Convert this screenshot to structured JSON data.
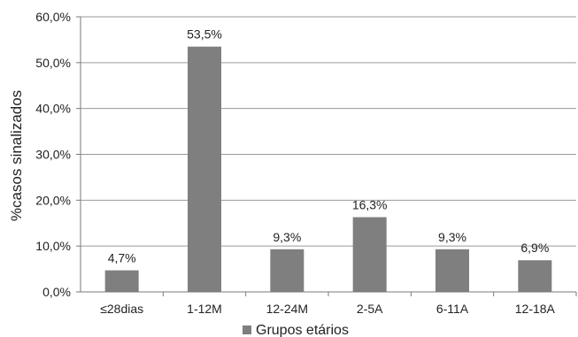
{
  "chart_data": {
    "type": "bar",
    "categories": [
      "≤28dias",
      "1-12M",
      "12-24M",
      "2-5A",
      "6-11A",
      "12-18A"
    ],
    "series": [
      {
        "name": "Grupos etários",
        "values": [
          4.7,
          53.5,
          9.3,
          16.3,
          9.3,
          6.9
        ],
        "data_labels": [
          "4,7%",
          "53,5%",
          "9,3%",
          "16,3%",
          "9,3%",
          "6,9%"
        ]
      }
    ],
    "ylabel": "%casos sinalizados",
    "xlabel": "",
    "ylim": [
      0,
      60
    ],
    "y_ticks": [
      0,
      10,
      20,
      30,
      40,
      50,
      60
    ],
    "y_tick_labels": [
      "0,0%",
      "10,0%",
      "20,0%",
      "30,0%",
      "40,0%",
      "50,0%",
      "60,0%"
    ],
    "grid": true,
    "legend_position": "bottom",
    "colors": {
      "bar": "#7f7f7f",
      "grid": "#9a9a9a",
      "axis": "#7a7a7a",
      "text": "#222222"
    }
  }
}
